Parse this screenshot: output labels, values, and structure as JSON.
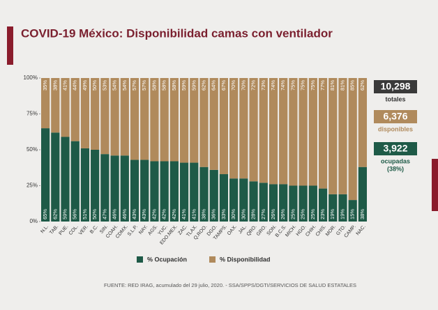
{
  "chart_data": {
    "type": "stacked_bar",
    "title": "COVID-19 México: Disponibilidad camas con ventilador",
    "categories": [
      "N.L.",
      "TAB.",
      "PUE.",
      "COL.",
      "VER.",
      "B.C.",
      "SIN.",
      "COAH.",
      "CDMX.",
      "S.L.P.",
      "NAY.",
      "AGS.",
      "YUC.",
      "EDO.MEX.",
      "ZAC.",
      "TLAX.",
      "Q.ROO.",
      "DGO.",
      "TAMPS.",
      "OAX.",
      "JAL.",
      "QRO.",
      "GRO.",
      "SON.",
      "B.C.S.",
      "MICH.",
      "HGO.",
      "CHIH.",
      "CHIS.",
      "MOR.",
      "GTO.",
      "CAMP.",
      "NAC."
    ],
    "series": [
      {
        "name": "% Ocupación",
        "color": "#1e5a47",
        "values": [
          65,
          62,
          59,
          56,
          51,
          50,
          47,
          46,
          46,
          43,
          43,
          42,
          42,
          42,
          41,
          41,
          38,
          36,
          33,
          30,
          30,
          28,
          27,
          26,
          26,
          25,
          25,
          25,
          23,
          19,
          19,
          15,
          38
        ],
        "value_labels": [
          "65%",
          "62%",
          "59%",
          "56%",
          "51%",
          "50%",
          "47%",
          "46%",
          "46%",
          "43%",
          "43%",
          "42%",
          "42%",
          "42%",
          "41%",
          "41%",
          "38%",
          "36%",
          "33%",
          "30%",
          "30%",
          "28%",
          "27%",
          "26%",
          "26%",
          "25%",
          "25%",
          "25%",
          "23%",
          "19%",
          "19%",
          "15%",
          "38%"
        ]
      },
      {
        "name": "% Disponibilidad",
        "color": "#b08a5c",
        "values": [
          35,
          38,
          41,
          44,
          49,
          50,
          53,
          54,
          54,
          57,
          57,
          58,
          58,
          58,
          59,
          59,
          62,
          64,
          67,
          70,
          70,
          72,
          73,
          74,
          74,
          75,
          75,
          75,
          77,
          81,
          81,
          85,
          62
        ],
        "value_labels": [
          "35%",
          "38%",
          "41%",
          "44%",
          "49%",
          "50%",
          "53%",
          "54%",
          "54%",
          "57%",
          "57%",
          "58%",
          "58%",
          "58%",
          "59%",
          "59%",
          "62%",
          "64%",
          "67%",
          "70%",
          "70%",
          "72%",
          "73%",
          "74%",
          "74%",
          "75%",
          "75%",
          "75%",
          "77%",
          "81%",
          "81%",
          "85%",
          "62%"
        ]
      }
    ],
    "ylim": [
      0,
      100
    ],
    "yticks": [
      {
        "value": 0,
        "label": "0%"
      },
      {
        "value": 25,
        "label": "25%"
      },
      {
        "value": 50,
        "label": "50%"
      },
      {
        "value": 75,
        "label": "75%"
      },
      {
        "value": 100,
        "label": "100%"
      }
    ],
    "grid": false,
    "summary": [
      {
        "value": "10,298",
        "label": "totales"
      },
      {
        "value": "6,376",
        "label": "disponibles"
      },
      {
        "value": "3,922",
        "label": "ocupadas",
        "note": "(38%)"
      }
    ],
    "source": "FUENTE: RED IRAG, acumulado del 29 julio, 2020.  -  SSA/SPPS/DGTI/SERVICIOS DE SALUD ESTATALES"
  }
}
